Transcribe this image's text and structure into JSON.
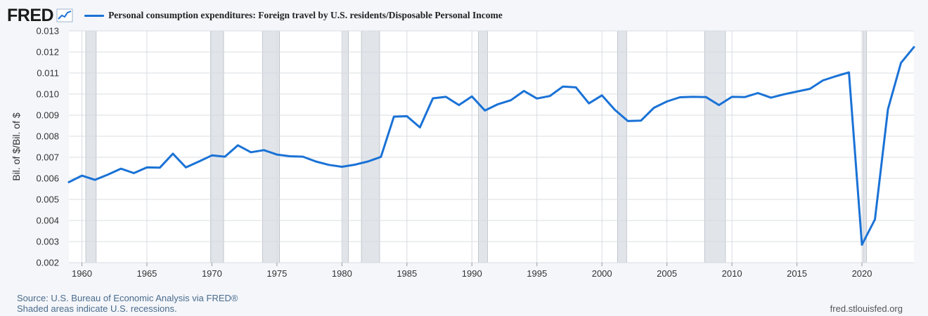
{
  "header": {
    "logo_text": "FRED",
    "logo_icon": "trend-line-icon"
  },
  "colors": {
    "series": "#1a72d6",
    "recession": "#e1e5ea",
    "grid": "#d8dce2",
    "plot_bg": "#ffffff",
    "page_bg": "#f4f6fa"
  },
  "chart_data": {
    "type": "line",
    "title": "",
    "ylabel": "Bil. of $/Bil. of $",
    "xlabel": "",
    "xlim": [
      1959,
      2024
    ],
    "ylim": [
      0.002,
      0.013
    ],
    "x_ticks": [
      1960,
      1965,
      1970,
      1975,
      1980,
      1985,
      1990,
      1995,
      2000,
      2005,
      2010,
      2015,
      2020
    ],
    "y_ticks": [
      "0.002",
      "0.003",
      "0.004",
      "0.005",
      "0.006",
      "0.007",
      "0.008",
      "0.009",
      "0.010",
      "0.011",
      "0.012",
      "0.013"
    ],
    "grid": true,
    "legend_position": "top-left",
    "recessions": [
      [
        1960.3,
        1961.1
      ],
      [
        1969.9,
        1970.9
      ],
      [
        1973.9,
        1975.2
      ],
      [
        1980.0,
        1980.5
      ],
      [
        1981.5,
        1982.9
      ],
      [
        1990.5,
        1991.2
      ],
      [
        2001.2,
        2001.9
      ],
      [
        2007.9,
        2009.5
      ],
      [
        2020.1,
        2020.35
      ]
    ],
    "series": [
      {
        "name": "Personal consumption expenditures: Foreign travel by U.S. residents/Disposable Personal Income",
        "x": [
          1959,
          1960,
          1961,
          1962,
          1963,
          1964,
          1965,
          1966,
          1967,
          1968,
          1969,
          1970,
          1971,
          1972,
          1973,
          1974,
          1975,
          1976,
          1977,
          1978,
          1979,
          1980,
          1981,
          1982,
          1983,
          1984,
          1985,
          1986,
          1987,
          1988,
          1989,
          1990,
          1991,
          1992,
          1993,
          1994,
          1995,
          1996,
          1997,
          1998,
          1999,
          2000,
          2001,
          2002,
          2003,
          2004,
          2005,
          2006,
          2007,
          2008,
          2009,
          2010,
          2011,
          2012,
          2013,
          2014,
          2015,
          2016,
          2017,
          2018,
          2019,
          2020,
          2021,
          2022,
          2023,
          2024
        ],
        "y": [
          0.00582,
          0.00613,
          0.00593,
          0.00618,
          0.00646,
          0.00625,
          0.00652,
          0.00651,
          0.00717,
          0.00652,
          0.0068,
          0.00709,
          0.00703,
          0.00757,
          0.00724,
          0.00734,
          0.00713,
          0.00705,
          0.00703,
          0.0068,
          0.00664,
          0.00655,
          0.00665,
          0.0068,
          0.00702,
          0.00893,
          0.00895,
          0.00842,
          0.0098,
          0.00987,
          0.00948,
          0.00989,
          0.00922,
          0.00952,
          0.00971,
          0.01015,
          0.00979,
          0.00991,
          0.01036,
          0.01032,
          0.00956,
          0.00994,
          0.00925,
          0.00872,
          0.00874,
          0.00935,
          0.00965,
          0.00985,
          0.00987,
          0.00986,
          0.00948,
          0.00987,
          0.00986,
          0.01005,
          0.00983,
          0.00999,
          0.01012,
          0.01025,
          0.01065,
          0.01085,
          0.01103,
          0.00285,
          0.00405,
          0.00928,
          0.01148,
          0.01223
        ]
      }
    ]
  },
  "footer": {
    "source": "Source: U.S. Bureau of Economic Analysis via FRED®",
    "recession_note": "Shaded areas indicate U.S. recessions.",
    "site": "fred.stlouisfed.org"
  }
}
